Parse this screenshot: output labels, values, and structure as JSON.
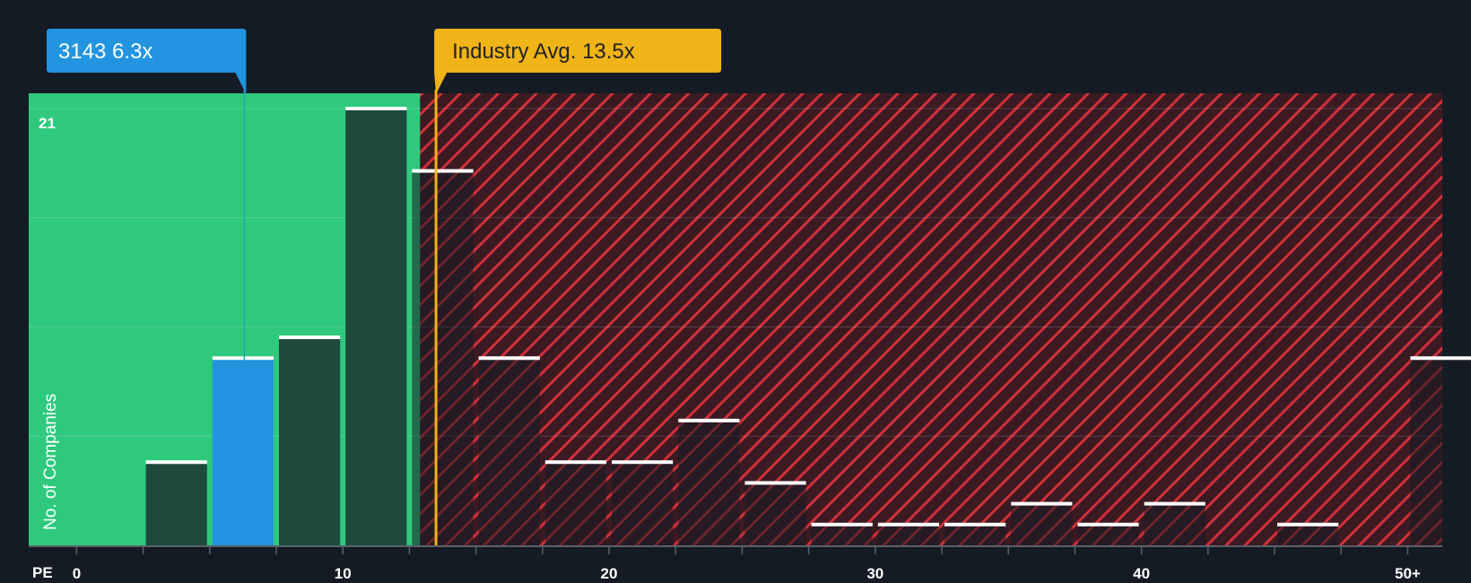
{
  "chart_data": {
    "type": "bar",
    "title": "",
    "xlabel": "PE",
    "ylabel": "No. of Companies",
    "x_tick_labels": [
      "0",
      "10",
      "20",
      "30",
      "40",
      "50+"
    ],
    "x_tick_values": [
      0,
      10,
      20,
      30,
      40,
      50
    ],
    "y_tick_labels": [
      "21"
    ],
    "ylim": [
      0,
      21
    ],
    "xlim": [
      -1.8,
      51.3
    ],
    "bin_width": 2.5,
    "bins": [
      {
        "start": 2.5,
        "count": 4
      },
      {
        "start": 5.0,
        "count": 9,
        "highlight": true
      },
      {
        "start": 7.5,
        "count": 10
      },
      {
        "start": 10.0,
        "count": 21
      },
      {
        "start": 12.5,
        "count": 18
      },
      {
        "start": 15.0,
        "count": 9
      },
      {
        "start": 17.5,
        "count": 4
      },
      {
        "start": 20.0,
        "count": 4
      },
      {
        "start": 22.5,
        "count": 6
      },
      {
        "start": 25.0,
        "count": 3
      },
      {
        "start": 27.5,
        "count": 1
      },
      {
        "start": 30.0,
        "count": 1
      },
      {
        "start": 32.5,
        "count": 1
      },
      {
        "start": 35.0,
        "count": 2
      },
      {
        "start": 37.5,
        "count": 1
      },
      {
        "start": 40.0,
        "count": 2
      },
      {
        "start": 45.0,
        "count": 1
      },
      {
        "start": 50.0,
        "count": 9
      }
    ],
    "company_marker": {
      "label": "3143 6.3x",
      "value": 6.3
    },
    "industry_marker": {
      "label": "Industry Avg. 13.5x",
      "value": 13.5
    },
    "fair_region_end": 12.9,
    "colors": {
      "background": "#151b24",
      "fair_zone": "#2fc97d",
      "over_zone": "#e8353f",
      "bar_dark": "#1d4a3d",
      "bar_highlight": "#2394e0",
      "company_callout": "#2394e0",
      "industry_callout": "#f0b318",
      "industry_text": "#222222"
    }
  }
}
